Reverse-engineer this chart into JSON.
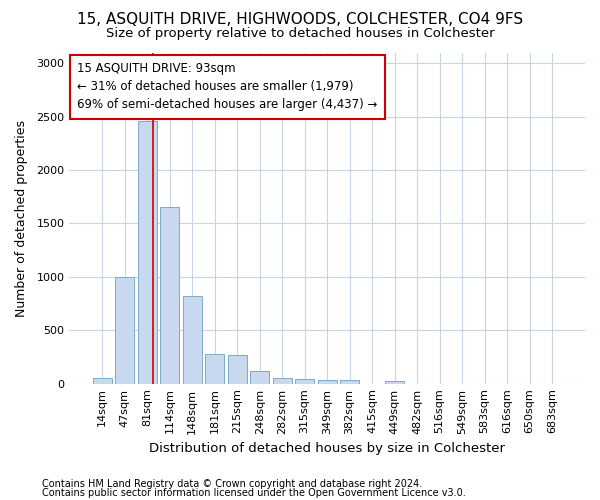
{
  "title": "15, ASQUITH DRIVE, HIGHWOODS, COLCHESTER, CO4 9FS",
  "subtitle": "Size of property relative to detached houses in Colchester",
  "xlabel": "Distribution of detached houses by size in Colchester",
  "ylabel": "Number of detached properties",
  "footnote1": "Contains HM Land Registry data © Crown copyright and database right 2024.",
  "footnote2": "Contains public sector information licensed under the Open Government Licence v3.0.",
  "categories": [
    "14sqm",
    "47sqm",
    "81sqm",
    "114sqm",
    "148sqm",
    "181sqm",
    "215sqm",
    "248sqm",
    "282sqm",
    "315sqm",
    "349sqm",
    "382sqm",
    "415sqm",
    "449sqm",
    "482sqm",
    "516sqm",
    "549sqm",
    "583sqm",
    "616sqm",
    "650sqm",
    "683sqm"
  ],
  "values": [
    55,
    1000,
    2460,
    1650,
    820,
    275,
    265,
    120,
    50,
    45,
    38,
    30,
    0,
    25,
    0,
    0,
    0,
    0,
    0,
    0,
    0
  ],
  "bar_color": "#c8d8ee",
  "bar_edge_color": "#7fa8cc",
  "background_color": "#ffffff",
  "grid_color": "#c8d4e8",
  "vline_color": "#cc0000",
  "vline_x_index": 2.27,
  "annotation_text": "15 ASQUITH DRIVE: 93sqm\n← 31% of detached houses are smaller (1,979)\n69% of semi-detached houses are larger (4,437) →",
  "annotation_box_color": "#ffffff",
  "annotation_box_edge": "#cc0000",
  "ylim": [
    0,
    3100
  ],
  "yticks": [
    0,
    500,
    1000,
    1500,
    2000,
    2500,
    3000
  ],
  "title_fontsize": 11,
  "subtitle_fontsize": 9.5,
  "ylabel_fontsize": 9,
  "xlabel_fontsize": 9.5,
  "tick_fontsize": 8,
  "annotation_fontsize": 8.5,
  "footnote_fontsize": 7
}
